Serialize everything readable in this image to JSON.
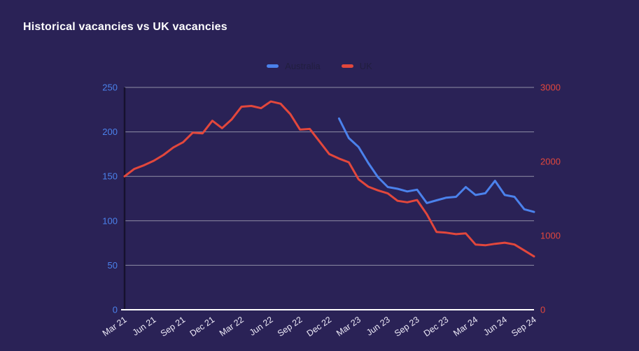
{
  "page": {
    "background": "#2a2256"
  },
  "legend": {
    "position": "top-center",
    "text_color": "#211e3f"
  },
  "chart_data": {
    "type": "line",
    "title": "Historical vacancies vs UK vacancies",
    "title_color": "#ffffff",
    "xlabel": "",
    "ylabel": "",
    "x_tick_labels": [
      "Mar 21",
      "Jun 21",
      "Sep 21",
      "Dec 21",
      "Mar 22",
      "Jun 22",
      "Sep 22",
      "Dec 22",
      "Mar 23",
      "Jun 23",
      "Sep 23",
      "Dec 23",
      "Mar 24",
      "Jun 24",
      "Sep 24"
    ],
    "x_unit": "month",
    "months_total": 43,
    "axes": {
      "left": {
        "min": 0,
        "max": 250,
        "ticks": [
          0,
          50,
          100,
          150,
          200,
          250
        ],
        "color": "#4b82ec"
      },
      "right": {
        "min": 0,
        "max": 3000,
        "ticks": [
          0,
          1000,
          2000,
          3000
        ],
        "color": "#e2473c"
      }
    },
    "grid": {
      "horizontal_on": true,
      "vertical_on": false,
      "line_color": "#8f8ea6",
      "baseline_color": "#ffffff",
      "left_axis_line_color": "#16112e",
      "x_label_color": "#edeaf7"
    },
    "series": [
      {
        "name": "Australia",
        "axis": "left",
        "color": "#4b82ec",
        "start_month": "Jan 23",
        "start_index": 22,
        "values": [
          215,
          193,
          183,
          165,
          149,
          138,
          136,
          133,
          135,
          120,
          123,
          126,
          127,
          138,
          129,
          131,
          145,
          129,
          127,
          113,
          110
        ]
      },
      {
        "name": "UK",
        "axis": "right",
        "color": "#e2473c",
        "start_month": "Mar 21",
        "start_index": 0,
        "values": [
          1800,
          1900,
          1950,
          2010,
          2090,
          2190,
          2260,
          2390,
          2380,
          2550,
          2450,
          2570,
          2740,
          2750,
          2720,
          2810,
          2780,
          2640,
          2430,
          2440,
          2270,
          2100,
          2040,
          1990,
          1760,
          1660,
          1610,
          1570,
          1470,
          1450,
          1480,
          1290,
          1050,
          1040,
          1020,
          1030,
          880,
          870,
          890,
          905,
          880,
          800,
          720
        ]
      }
    ]
  }
}
